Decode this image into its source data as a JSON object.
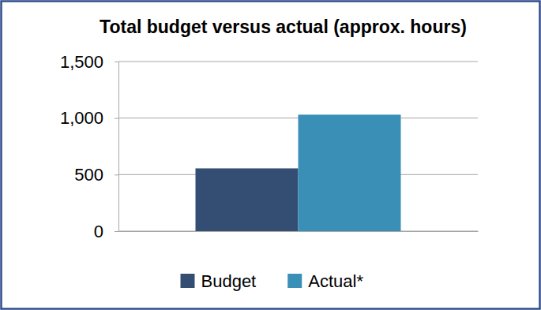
{
  "chart_data": {
    "type": "bar",
    "title": "Total budget versus actual (approx. hours)",
    "categories": [
      null
    ],
    "series": [
      {
        "name": "Budget",
        "color": "#344e73",
        "values": [
          555
        ]
      },
      {
        "name": "Actual*",
        "color": "#3a8fb7",
        "values": [
          1030
        ]
      }
    ],
    "ylim": [
      0,
      1500
    ],
    "yticks": [
      0,
      500,
      {
        "value": 1000,
        "label": "1,000"
      },
      {
        "value": 1500,
        "label": "1,500"
      }
    ],
    "grid": true,
    "legend": "bottom",
    "tick_labels": "y"
  }
}
